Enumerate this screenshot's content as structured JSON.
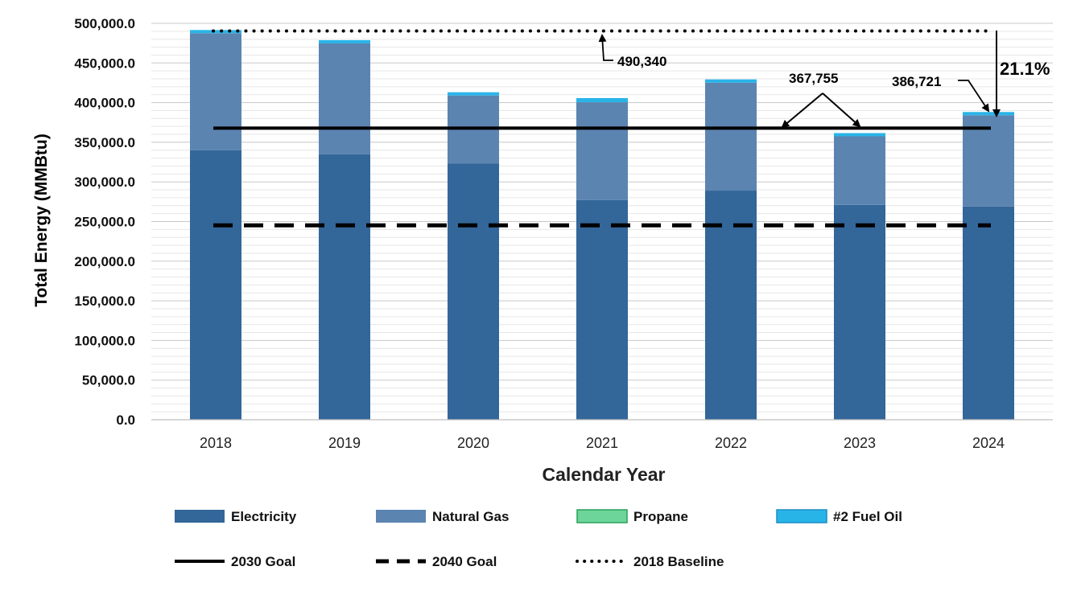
{
  "chart_data": {
    "type": "bar",
    "stacked": true,
    "xlabel": "Calendar Year",
    "ylabel": "Total Energy (MMBtu)",
    "ylim": [
      0,
      500000
    ],
    "ytick_step": 50000,
    "ytick_labels": [
      "0.0",
      "50,000.0",
      "100,000.0",
      "150,000.0",
      "200,000.0",
      "250,000.0",
      "300,000.0",
      "350,000.0",
      "400,000.0",
      "450,000.0",
      "500,000.0"
    ],
    "grid": true,
    "legend_position": "bottom",
    "categories": [
      "2018",
      "2019",
      "2020",
      "2021",
      "2022",
      "2023",
      "2024"
    ],
    "series": [
      {
        "name": "Electricity",
        "color": "#336699",
        "values": [
          340000,
          335000,
          323000,
          277000,
          289000,
          271000,
          269000
        ]
      },
      {
        "name": "Natural Gas",
        "color": "#5b84b1",
        "values": [
          147500,
          139700,
          86000,
          123500,
          136200,
          86500,
          115100
        ]
      },
      {
        "name": "Propane",
        "color": "#6dd59a",
        "values": [
          0,
          0,
          0,
          0,
          0,
          0,
          0
        ]
      },
      {
        "name": "#2 Fuel Oil",
        "color": "#29b4e8",
        "values": [
          2840,
          3300,
          3500,
          5200,
          3800,
          3000,
          2621
        ]
      }
    ],
    "reference_lines": [
      {
        "name": "2030 Goal",
        "value": 367755,
        "style": "solid"
      },
      {
        "name": "2040 Goal",
        "value": 245170,
        "style": "dashed"
      },
      {
        "name": "2018 Baseline",
        "value": 490340,
        "style": "dotted"
      }
    ],
    "annotations": {
      "baseline_label": "490,340",
      "goal_label": "367,755",
      "current_label": "386,721",
      "reduction_label": "21.1%"
    }
  }
}
